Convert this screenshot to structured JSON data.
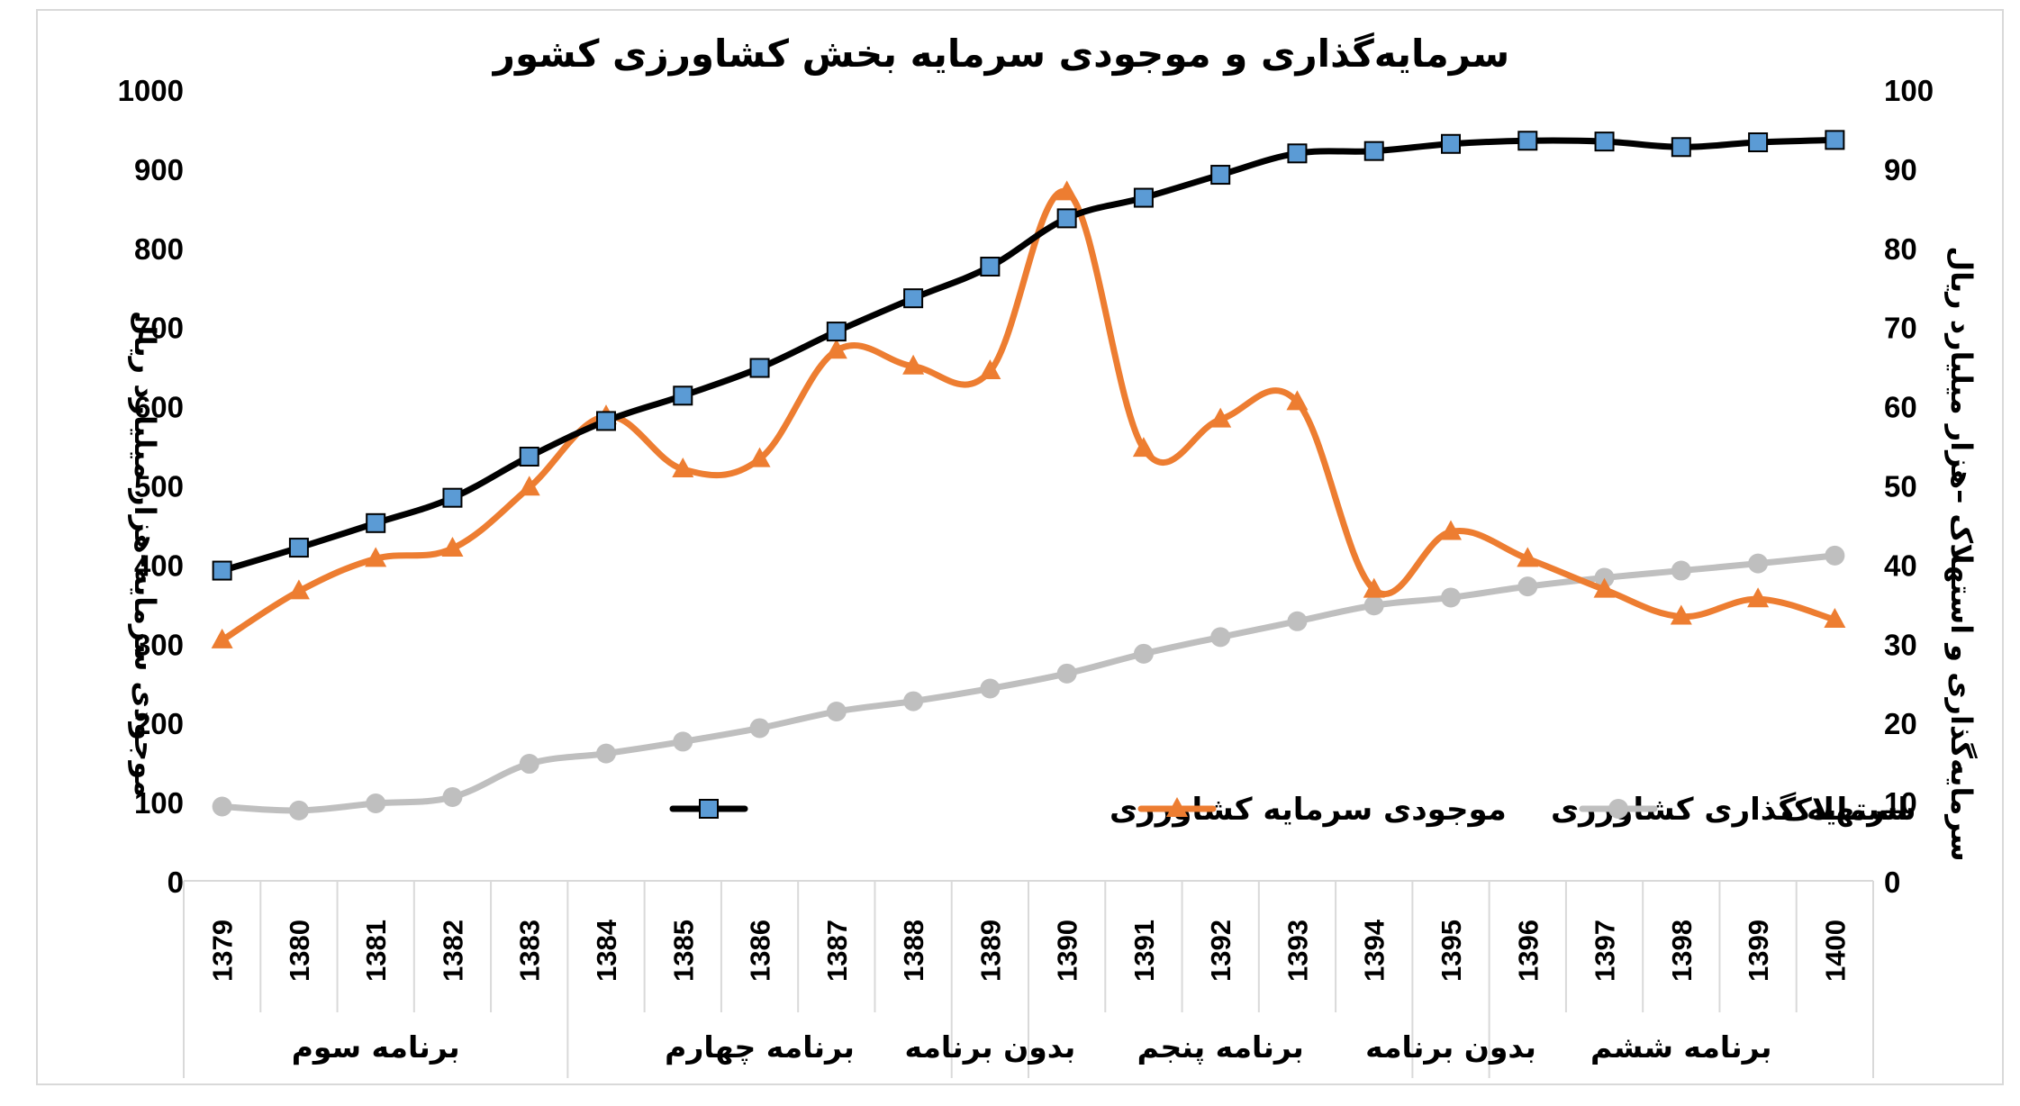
{
  "chart_data": {
    "type": "line",
    "title": "سرمایه‌گذاری و موجودی سرمایه بخش کشاورزی کشور",
    "y_left_label": "موجودی سرمایه–هزار میلیارد ریال",
    "y_right_label": "سرمایه‌گذاری و استهلاک –هزار میلیارد ریال",
    "y_left_range": [
      0,
      1000
    ],
    "y_right_range": [
      0,
      100
    ],
    "y_left_ticks": [
      "0",
      "100",
      "200",
      "300",
      "400",
      "500",
      "600",
      "700",
      "800",
      "900",
      "1000"
    ],
    "y_right_ticks": [
      "0",
      "10",
      "20",
      "30",
      "40",
      "50",
      "60",
      "70",
      "80",
      "90",
      "100"
    ],
    "categories": [
      "1379",
      "1380",
      "1381",
      "1382",
      "1383",
      "1384",
      "1385",
      "1386",
      "1387",
      "1388",
      "1389",
      "1390",
      "1391",
      "1392",
      "1393",
      "1394",
      "1395",
      "1396",
      "1397",
      "1398",
      "1399",
      "1400"
    ],
    "groups": [
      {
        "label": "برنامه سوم",
        "start": 0,
        "end": 4
      },
      {
        "label": "برنامه چهارم",
        "start": 5,
        "end": 9
      },
      {
        "label": "بدون برنامه",
        "start": 10,
        "end": 10
      },
      {
        "label": "برنامه پنجم",
        "start": 11,
        "end": 15
      },
      {
        "label": "بدون برنامه",
        "start": 16,
        "end": 16
      },
      {
        "label": "برنامه ششم",
        "start": 17,
        "end": 21
      }
    ],
    "series": [
      {
        "name": "موجودی سرمایه کشاورزی",
        "axis": "left",
        "color": "#000000",
        "marker": "square",
        "marker_color": "#5b9bd5",
        "values": [
          393,
          422,
          453,
          485,
          537,
          582,
          614,
          649,
          695,
          737,
          777,
          838,
          864,
          893,
          920,
          923,
          932,
          936,
          935,
          928,
          934,
          937
        ]
      },
      {
        "name": "سرمایه گذاری کشاورزی",
        "axis": "right",
        "color": "#ed7d31",
        "marker": "triangle",
        "marker_color": "#ed7d31",
        "values": [
          30.5,
          36.7,
          40.8,
          42.1,
          49.8,
          58.8,
          52.1,
          53.4,
          67.1,
          65.1,
          64.5,
          87.1,
          54.7,
          58.4,
          60.6,
          36.9,
          44.2,
          40.8,
          36.9,
          33.5,
          35.7,
          33.1
        ]
      },
      {
        "name": "استهلاک",
        "axis": "right",
        "color": "#bfbfbf",
        "marker": "circle",
        "marker_color": "#bfbfbf",
        "values": [
          9.5,
          9.0,
          9.9,
          10.7,
          14.9,
          16.2,
          17.7,
          19.4,
          21.5,
          22.8,
          24.4,
          26.3,
          28.8,
          30.9,
          32.9,
          34.9,
          35.9,
          37.3,
          38.4,
          39.3,
          40.2,
          41.2
        ]
      }
    ],
    "legend_position": "bottom-center inside plot",
    "grid": false
  }
}
